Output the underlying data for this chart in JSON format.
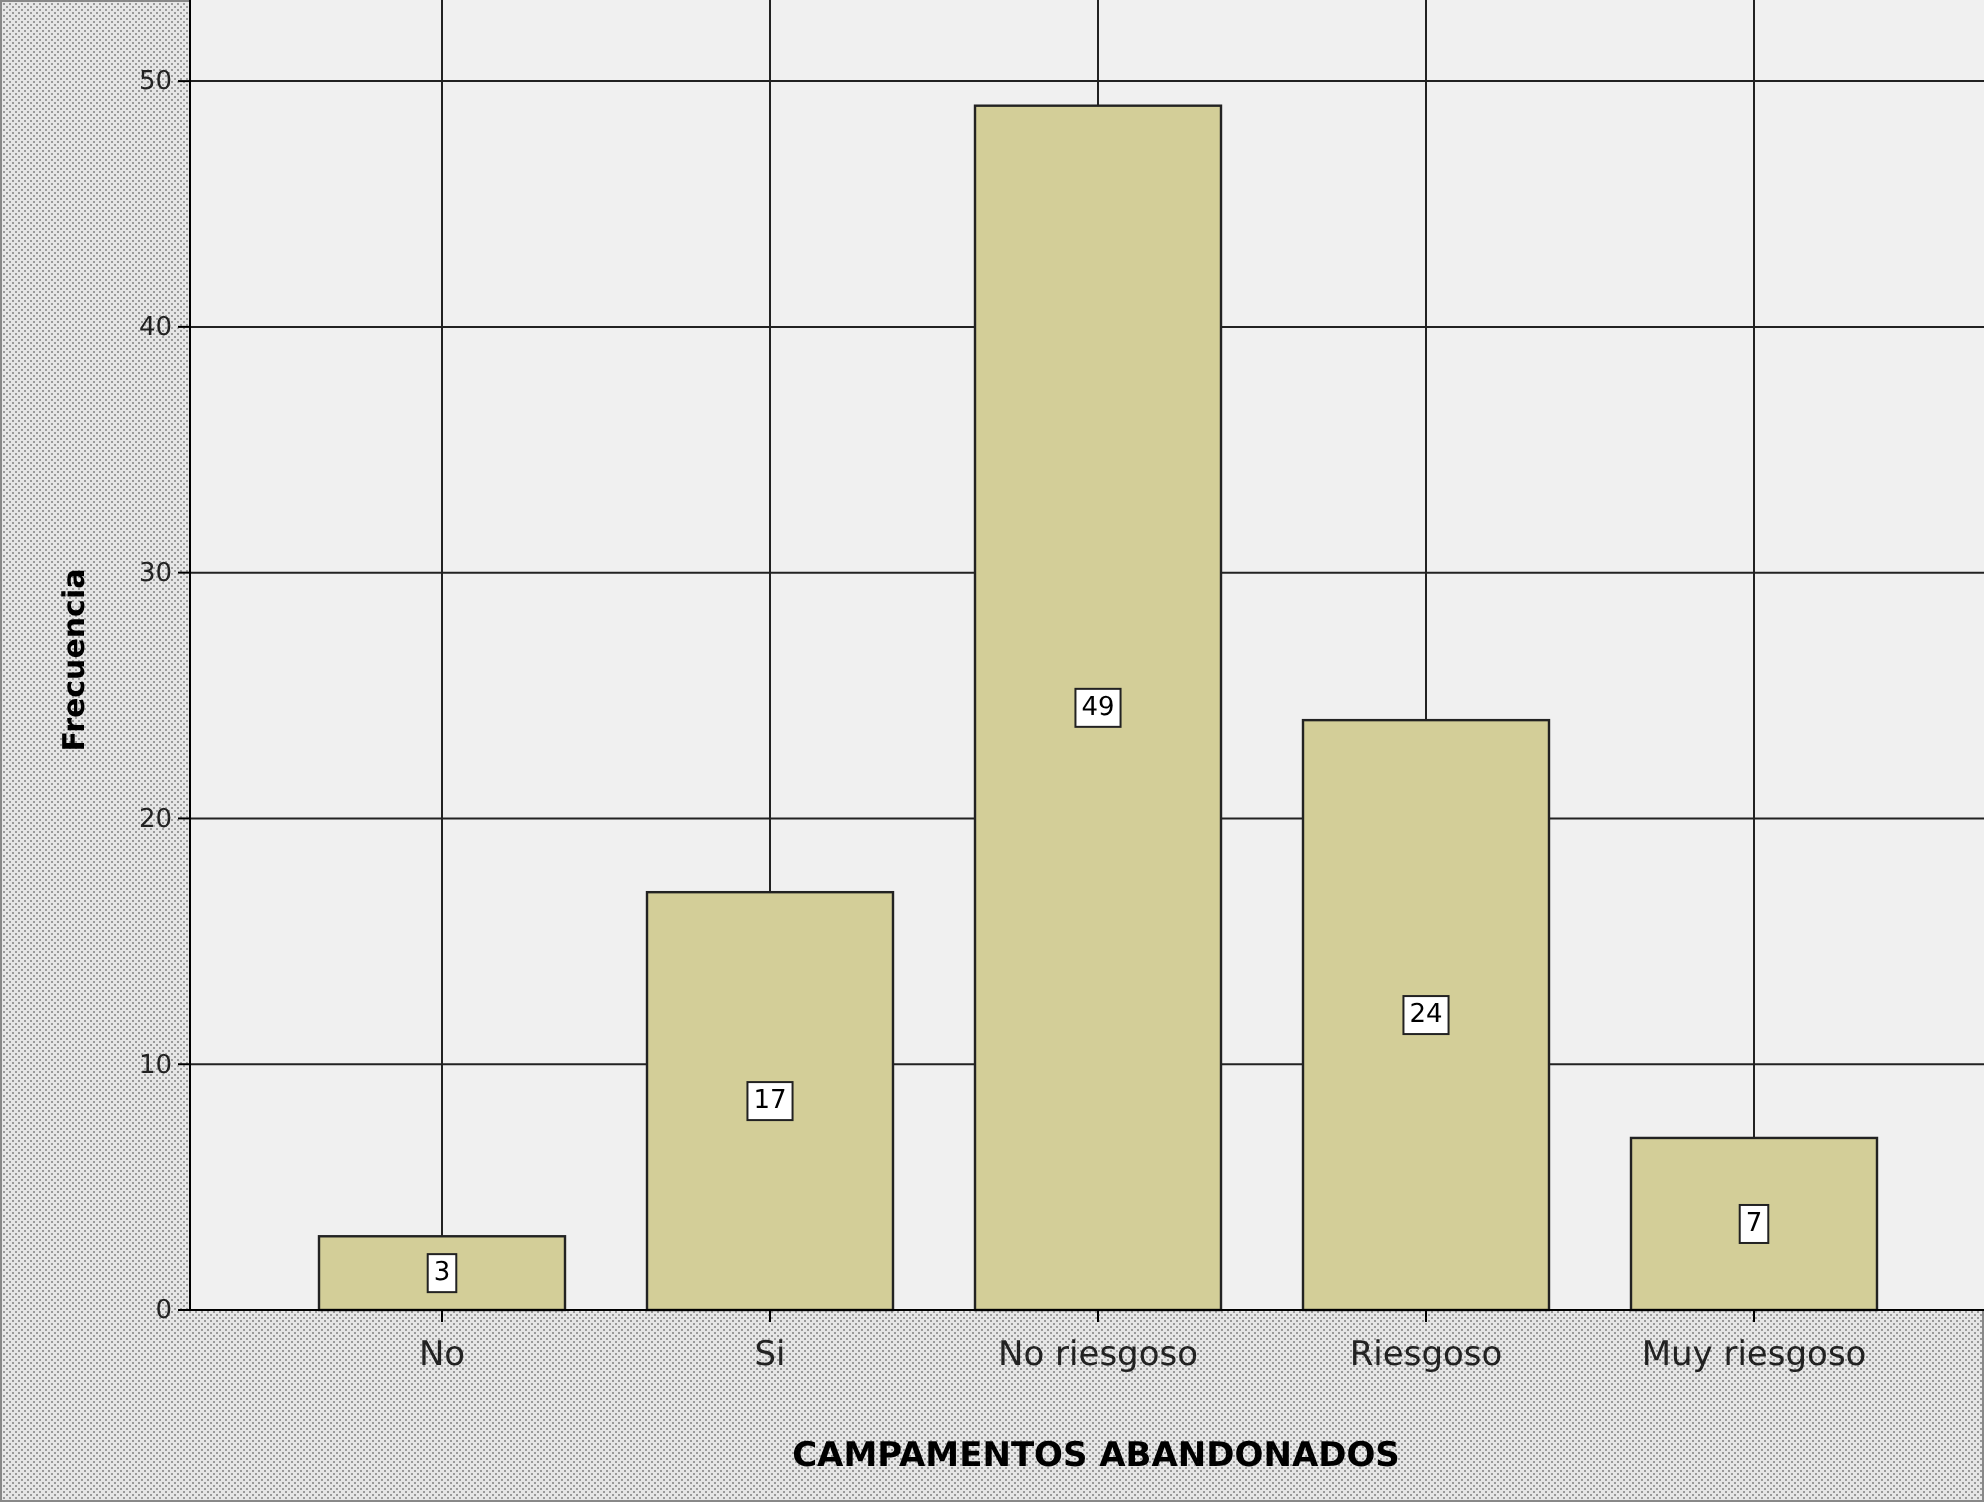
{
  "chart_data": {
    "type": "bar",
    "xlabel": "CAMPAMENTOS ABANDONADOS",
    "ylabel": "Frecuencia",
    "categories": [
      "No",
      "Si",
      "No riesgoso",
      "Riesgoso",
      "Muy riesgoso"
    ],
    "values": [
      3,
      17,
      49,
      24,
      7
    ],
    "color": "#d3ce98",
    "ylim": [
      0,
      53.3
    ],
    "yticks": [
      0,
      10,
      20,
      30,
      40,
      50
    ],
    "grid": true,
    "data_labels": true
  }
}
